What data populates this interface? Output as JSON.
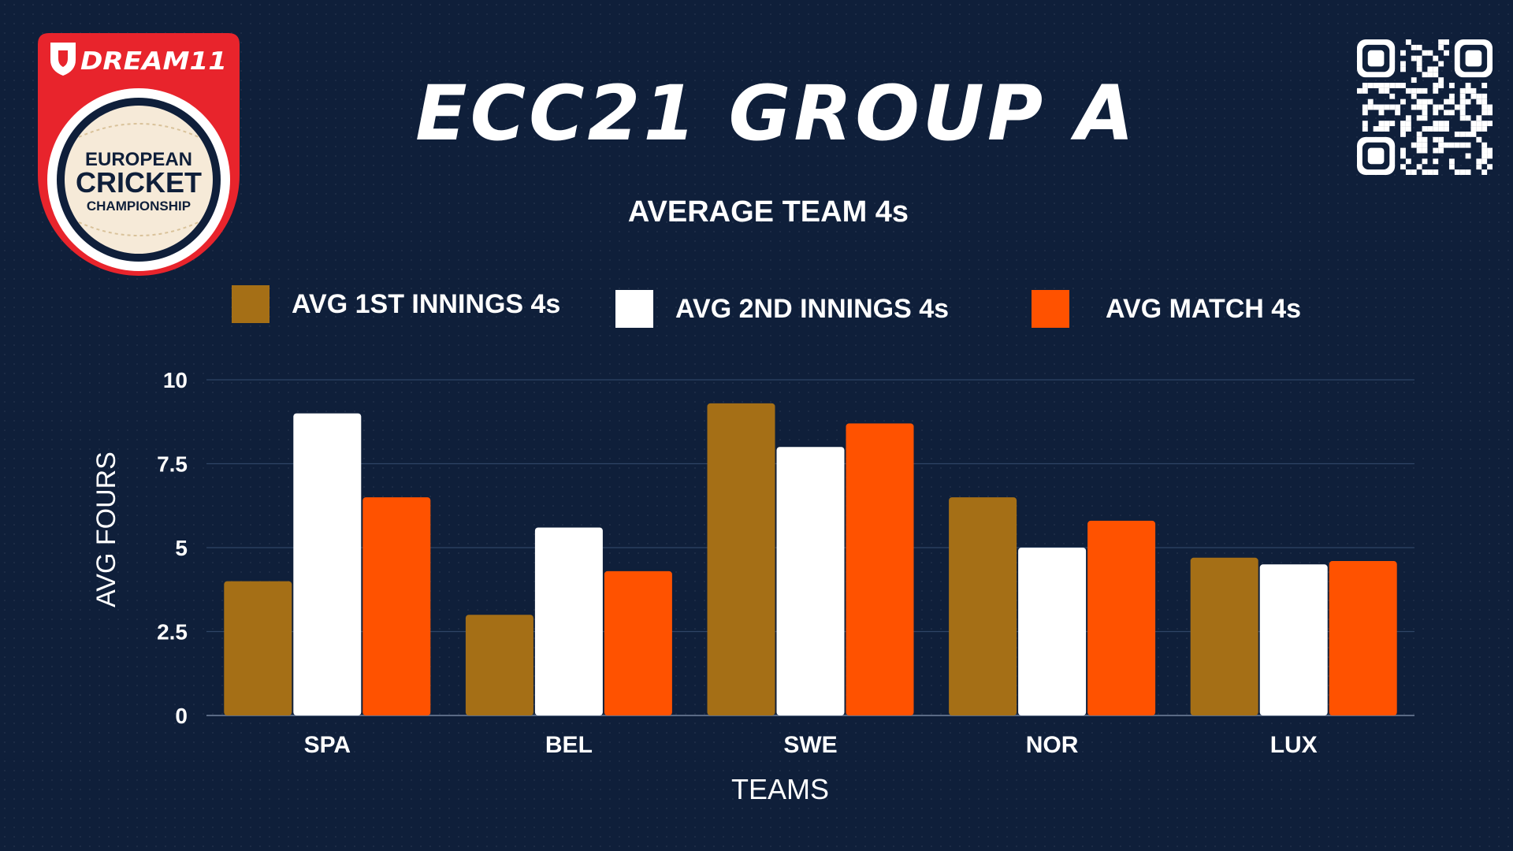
{
  "header": {
    "title": "ECC21 GROUP A",
    "subtitle": "AVERAGE TEAM 4s"
  },
  "logo": {
    "brand": "DREAM11",
    "line1": "EUROPEAN",
    "line2": "CRICKET",
    "line3": "CHAMPIONSHIP"
  },
  "icons": {
    "qr": "qr-code-icon"
  },
  "colors": {
    "background": "#0f1f3a",
    "series1": "#a56f16",
    "series2": "#ffffff",
    "series3": "#ff5200",
    "logo_red": "#e8242c"
  },
  "chart_data": {
    "type": "bar",
    "categories": [
      "SPA",
      "BEL",
      "SWE",
      "NOR",
      "LUX"
    ],
    "series": [
      {
        "name": "AVG 1ST INNINGS 4s",
        "values": [
          4,
          3,
          9.3,
          6.5,
          4.7
        ]
      },
      {
        "name": "AVG 2ND INNINGS 4s",
        "values": [
          9,
          5.6,
          8,
          5,
          4.5
        ]
      },
      {
        "name": "AVG MATCH 4s",
        "values": [
          6.5,
          4.3,
          8.7,
          5.8,
          4.6
        ]
      }
    ],
    "xlabel": "TEAMS",
    "ylabel": "AVG FOURS",
    "ylim": [
      0,
      10
    ],
    "yticks": [
      0,
      2.5,
      5,
      7.5,
      10
    ],
    "ytick_labels": [
      "0",
      "2.5",
      "5",
      "7.5",
      "10"
    ],
    "grid": true,
    "legend_position": "top"
  }
}
